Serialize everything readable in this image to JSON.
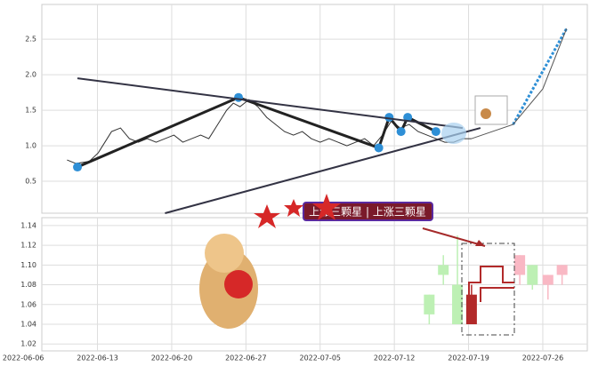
{
  "chart_data": [
    {
      "type": "line",
      "xlim": [
        0.25,
        7.6
      ],
      "ylim": [
        0.05,
        2.99
      ],
      "yticks": [
        0.5,
        {
          "value": 1,
          "label": "1.0"
        },
        1.5,
        {
          "value": 2,
          "label": "2.0"
        },
        2.5
      ],
      "grid": true,
      "series": [
        {
          "color": "#333333",
          "width": 1,
          "x": [
            0.59,
            0.71,
            0.89,
            1.01,
            1.1,
            1.19,
            1.31,
            1.43,
            1.55,
            1.67,
            1.79,
            1.91,
            2.03,
            2.15,
            2.27,
            2.39,
            2.5,
            2.62,
            2.74,
            2.83,
            2.92,
            3.04,
            3.16,
            3.28,
            3.4,
            3.52,
            3.64,
            3.76,
            3.88,
            4.0,
            4.12,
            4.24,
            4.36,
            4.48,
            4.6,
            4.72,
            4.84,
            4.96,
            5.08,
            5.2,
            5.32,
            5.44,
            5.56,
            5.68,
            5.8,
            5.92,
            6.04
          ],
          "values": [
            0.8,
            0.75,
            0.78,
            0.9,
            1.05,
            1.2,
            1.25,
            1.1,
            1.05,
            1.1,
            1.05,
            1.1,
            1.15,
            1.05,
            1.1,
            1.15,
            1.1,
            1.3,
            1.5,
            1.6,
            1.55,
            1.65,
            1.55,
            1.4,
            1.3,
            1.2,
            1.15,
            1.2,
            1.1,
            1.05,
            1.1,
            1.05,
            1.0,
            1.05,
            1.1,
            1.0,
            1.15,
            1.35,
            1.25,
            1.3,
            1.2,
            1.15,
            1.1,
            1.05,
            1.05,
            1.1,
            1.1
          ]
        },
        {
          "color": "#222222",
          "width": 3,
          "markers": true,
          "marker_color": "#2e8fd6",
          "x": [
            0.73,
            2.9,
            4.79,
            4.93,
            5.09,
            5.18,
            5.56
          ],
          "values": [
            0.7,
            1.68,
            0.97,
            1.4,
            1.2,
            1.4,
            1.2
          ]
        },
        {
          "color": "#333344",
          "width": 2,
          "x": [
            0.73,
            5.92
          ],
          "values": [
            1.95,
            1.25
          ]
        },
        {
          "color": "#333344",
          "width": 2,
          "x": [
            1.91,
            6.16
          ],
          "values": [
            0.05,
            1.25
          ]
        },
        {
          "color": "#2e8fd6",
          "width": 3,
          "dash": true,
          "x": [
            6.6,
            7.32
          ],
          "values": [
            1.3,
            2.65
          ]
        },
        {
          "color": "#555555",
          "width": 1,
          "x": [
            6.04,
            6.6,
            7.0,
            7.32
          ],
          "values": [
            1.1,
            1.3,
            1.8,
            2.65
          ]
        }
      ]
    },
    {
      "type": "candlestick",
      "xlim": [
        0.25,
        7.6
      ],
      "ylim": [
        1.013,
        1.148
      ],
      "yticks": [
        1.02,
        1.04,
        1.06,
        1.08,
        {
          "value": 1.1,
          "label": "1.10"
        },
        1.12,
        1.14
      ],
      "xticks": [
        {
          "value": 0,
          "label": "2022-06-06"
        },
        {
          "value": 1,
          "label": "2022-06-13"
        },
        {
          "value": 2,
          "label": "2022-06-20"
        },
        {
          "value": 3,
          "label": "2022-06-27"
        },
        {
          "value": 4,
          "label": "2022-07-05"
        },
        {
          "value": 5,
          "label": "2022-07-12"
        },
        {
          "value": 6,
          "label": "2022-07-19"
        },
        {
          "value": 7,
          "label": "2022-07-26"
        }
      ],
      "grid": true,
      "x": [
        5.47,
        5.66,
        5.85,
        6.04,
        6.69,
        6.86,
        7.07,
        7.26
      ],
      "open": [
        1.05,
        1.09,
        1.04,
        1.04,
        1.09,
        1.08,
        1.08,
        1.09
      ],
      "high": [
        1.07,
        1.11,
        1.13,
        1.08,
        1.11,
        1.1,
        1.09,
        1.1
      ],
      "low": [
        1.04,
        1.08,
        1.04,
        1.04,
        1.08,
        1.075,
        1.065,
        1.08
      ],
      "close": [
        1.07,
        1.1,
        1.08,
        1.07,
        1.11,
        1.1,
        1.09,
        1.1
      ],
      "colors": [
        "#bdf0b4",
        "#bdf0b4",
        "#bdf0b4",
        "#b22a2a",
        "#f9b8c4",
        "#bdf0b4",
        "#f9b8c4",
        "#f9b8c4"
      ],
      "annotation": "上涨三颗星 | 上涨三颗星"
    }
  ]
}
